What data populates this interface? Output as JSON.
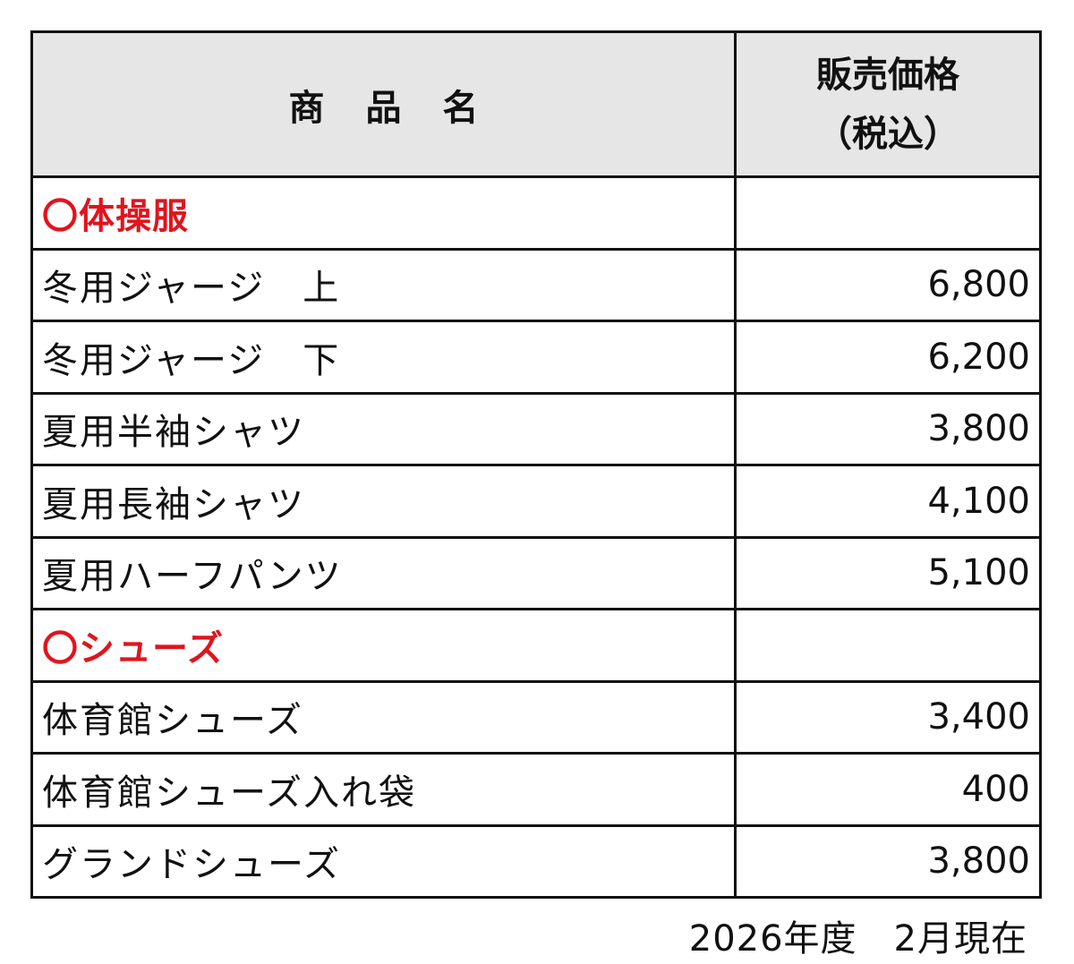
{
  "table": {
    "header": {
      "name": "商品名",
      "price_line1": "販売価格",
      "price_line2": "（税込）"
    },
    "rows": [
      {
        "type": "category",
        "name": "〇体操服",
        "price": ""
      },
      {
        "type": "item",
        "name": "冬用ジャージ　上",
        "price": "6,800"
      },
      {
        "type": "item",
        "name": "冬用ジャージ　下",
        "price": "6,200"
      },
      {
        "type": "item",
        "name": "夏用半袖シャツ",
        "price": "3,800"
      },
      {
        "type": "item",
        "name": "夏用長袖シャツ",
        "price": "4,100"
      },
      {
        "type": "item",
        "name": "夏用ハーフパンツ",
        "price": "5,100"
      },
      {
        "type": "category",
        "name": "〇シューズ",
        "price": ""
      },
      {
        "type": "item",
        "name": "体育館シューズ",
        "price": "3,400"
      },
      {
        "type": "item",
        "name": "体育館シューズ入れ袋",
        "price": "400"
      },
      {
        "type": "item",
        "name": "グランドシューズ",
        "price": "3,800"
      }
    ]
  },
  "footnote": "2026年度　2月現在",
  "colors": {
    "category_text": "#e0141e",
    "header_background": "#e6e6e6",
    "border": "#111111"
  }
}
